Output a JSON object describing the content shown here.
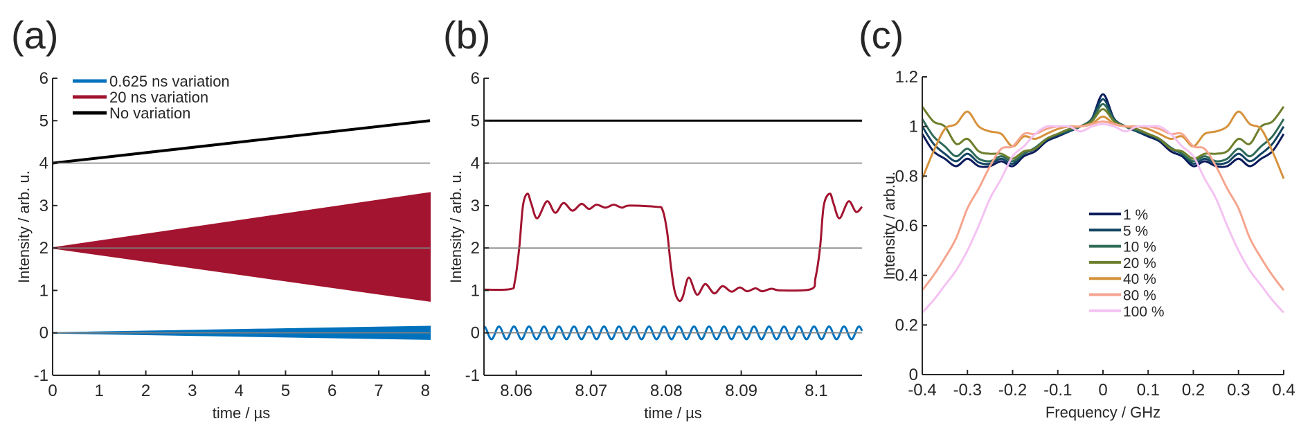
{
  "panels": [
    {
      "label": "(a)"
    },
    {
      "label": "(b)"
    },
    {
      "label": "(c)"
    }
  ],
  "chart_data": [
    {
      "type": "line",
      "panel": "(a)",
      "xlabel": "time / µs",
      "ylabel": "Intensity / arb. u.",
      "xlim": [
        0,
        8.1
      ],
      "ylim": [
        -1,
        6
      ],
      "xticks": [
        0,
        1,
        2,
        3,
        4,
        5,
        6,
        7,
        8
      ],
      "xtick_labels": [
        "0",
        "1",
        "2",
        "3",
        "4",
        "5",
        "6",
        "7",
        "8"
      ],
      "yticks": [
        -1,
        0,
        1,
        2,
        3,
        4,
        5,
        6
      ],
      "ytick_labels": [
        "-1",
        "0",
        "1",
        "2",
        "3",
        "4",
        "5",
        "6"
      ],
      "reference_lines": [
        0,
        2,
        4
      ],
      "legend": {
        "placement": "top-left",
        "entries": [
          "0.625 ns variation",
          "20 ns variation",
          "No variation"
        ]
      },
      "series": [
        {
          "name": "0.625 ns variation",
          "color": "#0072bd",
          "kind": "band",
          "x": [
            0,
            8.1
          ],
          "upper": [
            0,
            0.15
          ],
          "lower": [
            0,
            -0.15
          ]
        },
        {
          "name": "20 ns variation",
          "color": "#a2142f",
          "kind": "band",
          "x": [
            0,
            8.1
          ],
          "upper": [
            2,
            3.3
          ],
          "lower": [
            2,
            0.75
          ]
        },
        {
          "name": "No variation",
          "color": "#000000",
          "kind": "line",
          "x": [
            0,
            8.1
          ],
          "y": [
            4,
            5
          ]
        }
      ]
    },
    {
      "type": "line",
      "panel": "(b)",
      "xlabel": "time / µs",
      "ylabel": "Intensity / arb. u.",
      "xlim": [
        8.0557,
        8.1061
      ],
      "ylim": [
        -1,
        6
      ],
      "xticks": [
        8.06,
        8.07,
        8.08,
        8.09,
        8.1
      ],
      "xtick_labels": [
        "8.06",
        "8.07",
        "8.08",
        "8.09",
        "8.1"
      ],
      "yticks": [
        -1,
        0,
        1,
        2,
        3,
        4,
        5,
        6
      ],
      "ytick_labels": [
        "-1",
        "0",
        "1",
        "2",
        "3",
        "4",
        "5",
        "6"
      ],
      "reference_lines": [
        0,
        2,
        4
      ],
      "series": [
        {
          "color": "#000000",
          "kind": "line",
          "x": [
            8.0557,
            8.1061
          ],
          "y": [
            5,
            5
          ]
        },
        {
          "color": "#a2142f",
          "kind": "line",
          "x": [
            8.0557,
            8.0592,
            8.0598,
            8.0604,
            8.0609,
            8.0615,
            8.062,
            8.0628,
            8.0641,
            8.0652,
            8.0663,
            8.0675,
            8.0687,
            8.0697,
            8.0707,
            8.0719,
            8.073,
            8.0741,
            8.0751,
            8.0787,
            8.0795,
            8.0801,
            8.0806,
            8.0811,
            8.0817,
            8.0822,
            8.083,
            8.0841,
            8.0852,
            8.0864,
            8.0875,
            8.0887,
            8.0898,
            8.0908,
            8.0919,
            8.0928,
            8.094,
            8.0953,
            8.0993,
            8.0999,
            8.1005,
            8.101,
            8.1018,
            8.1023,
            8.1031,
            8.1043,
            8.1053,
            8.1061
          ],
          "y": [
            1.02,
            1.03,
            1.2,
            2.0,
            3.0,
            3.28,
            3.05,
            2.7,
            3.1,
            2.83,
            3.06,
            2.88,
            3.04,
            2.92,
            3.02,
            2.95,
            3.02,
            2.95,
            3.0,
            2.97,
            2.9,
            2.4,
            1.6,
            1.0,
            0.76,
            0.85,
            1.3,
            0.9,
            1.15,
            0.93,
            1.1,
            0.97,
            1.07,
            0.98,
            1.05,
            0.98,
            1.04,
            1.0,
            1.03,
            1.3,
            2.0,
            3.0,
            3.28,
            3.05,
            2.7,
            3.1,
            2.85,
            2.97
          ]
        },
        {
          "color": "#0072bd",
          "kind": "sine",
          "offset": 0,
          "amplitude": 0.15,
          "period": 0.002,
          "phase_peak_at": 8.0557
        }
      ]
    },
    {
      "type": "line",
      "panel": "(c)",
      "xlabel": "Frequency / GHz",
      "ylabel": "Intensity / arb.u.",
      "xlim": [
        -0.4,
        0.4
      ],
      "ylim": [
        0,
        1.2
      ],
      "xticks": [
        -0.4,
        -0.3,
        -0.2,
        -0.1,
        0,
        0.1,
        0.2,
        0.3,
        0.4
      ],
      "xtick_labels": [
        "-0.4",
        "-0.3",
        "-0.2",
        "-0.1",
        "0",
        "0.1",
        "0.2",
        "0.3",
        "0.4"
      ],
      "yticks": [
        0,
        0.2,
        0.4,
        0.6,
        0.8,
        1,
        1.2
      ],
      "ytick_labels": [
        "0",
        "0.2",
        "0.4",
        "0.6",
        "0.8",
        "1",
        "1.2"
      ],
      "legend": {
        "placement": "center",
        "entries": [
          "1 %",
          "5 %",
          "10 %",
          "20 %",
          "40 %",
          "80 %",
          "100 %"
        ]
      },
      "x": [
        -0.4,
        -0.375,
        -0.35,
        -0.325,
        -0.3,
        -0.275,
        -0.25,
        -0.225,
        -0.2,
        -0.175,
        -0.15,
        -0.125,
        -0.1,
        -0.075,
        -0.05,
        -0.025,
        0,
        0.025,
        0.05,
        0.075,
        0.1,
        0.125,
        0.15,
        0.175,
        0.2,
        0.225,
        0.25,
        0.275,
        0.3,
        0.325,
        0.35,
        0.375,
        0.4
      ],
      "series": [
        {
          "name": "1 %",
          "color": "#0b1b5c",
          "values": [
            0.97,
            0.9,
            0.87,
            0.84,
            0.87,
            0.84,
            0.84,
            0.86,
            0.84,
            0.88,
            0.9,
            0.94,
            0.96,
            0.98,
            1.0,
            1.03,
            1.13,
            1.03,
            1.0,
            0.98,
            0.96,
            0.94,
            0.9,
            0.88,
            0.84,
            0.86,
            0.84,
            0.84,
            0.87,
            0.84,
            0.87,
            0.9,
            0.97
          ]
        },
        {
          "name": "5 %",
          "color": "#134563",
          "values": [
            1.0,
            0.93,
            0.89,
            0.86,
            0.89,
            0.855,
            0.85,
            0.87,
            0.85,
            0.89,
            0.91,
            0.945,
            0.965,
            0.98,
            1.0,
            1.03,
            1.11,
            1.03,
            1.0,
            0.98,
            0.965,
            0.945,
            0.91,
            0.89,
            0.85,
            0.87,
            0.85,
            0.855,
            0.89,
            0.86,
            0.89,
            0.93,
            1.0
          ]
        },
        {
          "name": "10 %",
          "color": "#2f6b58",
          "values": [
            1.03,
            0.96,
            0.92,
            0.88,
            0.91,
            0.87,
            0.86,
            0.88,
            0.86,
            0.89,
            0.915,
            0.95,
            0.97,
            0.985,
            1.0,
            1.025,
            1.09,
            1.025,
            1.0,
            0.985,
            0.97,
            0.95,
            0.915,
            0.89,
            0.86,
            0.88,
            0.86,
            0.87,
            0.91,
            0.88,
            0.92,
            0.96,
            1.03
          ]
        },
        {
          "name": "20 %",
          "color": "#6e7f2c",
          "values": [
            1.08,
            1.02,
            1.0,
            0.93,
            0.95,
            0.9,
            0.89,
            0.89,
            0.87,
            0.9,
            0.91,
            0.95,
            0.97,
            0.99,
            1.0,
            1.02,
            1.07,
            1.02,
            1.0,
            0.99,
            0.97,
            0.95,
            0.91,
            0.9,
            0.87,
            0.89,
            0.89,
            0.9,
            0.95,
            0.93,
            1.0,
            1.02,
            1.08
          ]
        },
        {
          "name": "40 %",
          "color": "#d6923c",
          "values": [
            0.79,
            0.9,
            0.99,
            1.01,
            1.06,
            1.0,
            0.98,
            0.97,
            0.92,
            0.96,
            0.95,
            0.97,
            0.99,
            1.0,
            1.0,
            1.01,
            1.04,
            1.01,
            1.0,
            1.0,
            0.99,
            0.97,
            0.95,
            0.96,
            0.92,
            0.97,
            0.98,
            1.0,
            1.06,
            1.01,
            0.99,
            0.9,
            0.79
          ]
        },
        {
          "name": "80 %",
          "color": "#f5a58e",
          "values": [
            0.34,
            0.4,
            0.47,
            0.55,
            0.67,
            0.75,
            0.84,
            0.91,
            0.92,
            0.97,
            0.97,
            0.99,
            1.0,
            1.0,
            1.0,
            1.01,
            1.02,
            1.01,
            1.0,
            1.0,
            1.0,
            0.99,
            0.97,
            0.97,
            0.92,
            0.91,
            0.84,
            0.75,
            0.67,
            0.55,
            0.47,
            0.4,
            0.34
          ]
        },
        {
          "name": "100 %",
          "color": "#f4c2f2",
          "values": [
            0.25,
            0.3,
            0.36,
            0.42,
            0.5,
            0.6,
            0.71,
            0.79,
            0.88,
            0.92,
            0.97,
            1.0,
            1.0,
            1.0,
            0.98,
            1.0,
            1.01,
            1.0,
            0.98,
            1.0,
            1.0,
            1.0,
            0.97,
            0.92,
            0.88,
            0.79,
            0.71,
            0.6,
            0.5,
            0.42,
            0.36,
            0.3,
            0.25
          ]
        }
      ]
    }
  ]
}
